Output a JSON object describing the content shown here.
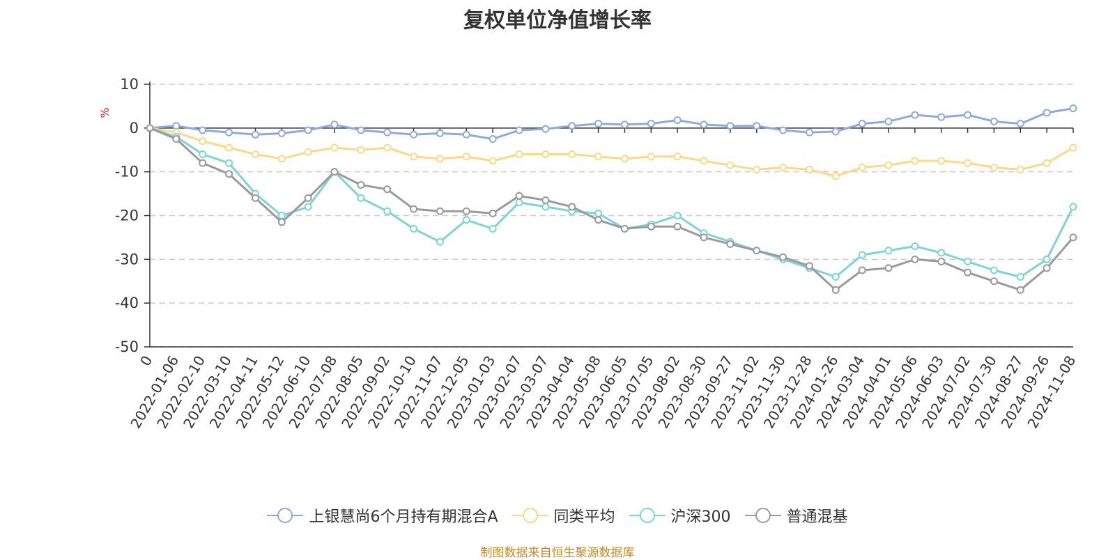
{
  "chart_data": {
    "type": "line",
    "title": "复权单位净值增长率",
    "ylabel": "%",
    "ylim": [
      -50,
      10
    ],
    "yticks": [
      10,
      0,
      -10,
      -20,
      -30,
      -40,
      -50
    ],
    "origin_tick": "0",
    "x": [
      "2022-01-06",
      "2022-02-10",
      "2022-03-10",
      "2022-04-11",
      "2022-05-12",
      "2022-06-10",
      "2022-07-08",
      "2022-08-05",
      "2022-09-02",
      "2022-10-10",
      "2022-11-07",
      "2022-12-05",
      "2023-01-03",
      "2023-02-07",
      "2023-03-07",
      "2023-04-04",
      "2023-05-08",
      "2023-06-05",
      "2023-07-05",
      "2023-08-02",
      "2023-08-30",
      "2023-09-27",
      "2023-11-02",
      "2023-11-30",
      "2023-12-28",
      "2024-01-26",
      "2024-03-04",
      "2024-04-01",
      "2024-05-06",
      "2024-06-03",
      "2024-07-02",
      "2024-07-30",
      "2024-08-27",
      "2024-09-26",
      "2024-11-08"
    ],
    "grid": true,
    "legend_position": "bottom",
    "series": [
      {
        "name": "上银慧尚6个月持有期混合A",
        "color": "#8eaadb",
        "values": [
          0.5,
          -0.5,
          -1.0,
          -1.5,
          -1.2,
          -0.5,
          0.8,
          -0.5,
          -1.0,
          -1.5,
          -1.2,
          -1.5,
          -2.5,
          -0.5,
          -0.2,
          0.5,
          1.0,
          0.8,
          1.0,
          1.8,
          0.8,
          0.5,
          0.5,
          -0.5,
          -1.0,
          -0.8,
          1.0,
          1.5,
          3.0,
          2.5,
          3.0,
          1.5,
          1.0,
          3.5,
          4.5
        ]
      },
      {
        "name": "同类平均",
        "color": "#fcd98a",
        "values": [
          -1.0,
          -3.0,
          -4.5,
          -6.0,
          -7.0,
          -5.5,
          -4.5,
          -5.0,
          -4.5,
          -6.5,
          -7.0,
          -6.5,
          -7.5,
          -6.0,
          -6.0,
          -6.0,
          -6.5,
          -7.0,
          -6.5,
          -6.5,
          -7.5,
          -8.5,
          -9.5,
          -9.0,
          -9.5,
          -11.0,
          -9.0,
          -8.5,
          -7.5,
          -7.5,
          -8.0,
          -9.0,
          -9.5,
          -8.0,
          -4.5
        ]
      },
      {
        "name": "沪深300",
        "color": "#7fd3d8",
        "values": [
          -2.0,
          -6.0,
          -8.0,
          -15.0,
          -20.0,
          -18.0,
          -10.0,
          -16.0,
          -19.0,
          -23.0,
          -26.0,
          -21.0,
          -23.0,
          -17.0,
          -18.0,
          -19.0,
          -19.5,
          -23.0,
          -22.0,
          -20.0,
          -24.0,
          -26.0,
          -28.0,
          -30.0,
          -32.0,
          -34.0,
          -29.0,
          -28.0,
          -27.0,
          -28.5,
          -30.5,
          -32.5,
          -34.0,
          -30.0,
          -18.0
        ]
      },
      {
        "name": "普通混基",
        "color": "#9a9a9a",
        "values": [
          -2.5,
          -8.0,
          -10.5,
          -16.0,
          -21.5,
          -16.0,
          -10.0,
          -13.0,
          -14.0,
          -18.5,
          -19.0,
          -19.0,
          -19.5,
          -15.5,
          -16.5,
          -18.0,
          -21.0,
          -23.0,
          -22.5,
          -22.5,
          -25.0,
          -26.5,
          -28.0,
          -29.5,
          -31.5,
          -37.0,
          -32.5,
          -32.0,
          -30.0,
          -30.5,
          -33.0,
          -35.0,
          -37.0,
          -32.0,
          -25.0
        ]
      }
    ]
  },
  "legend": [
    {
      "label": "上银慧尚6个月持有期混合A"
    },
    {
      "label": "同类平均"
    },
    {
      "label": "沪深300"
    },
    {
      "label": "普通混基"
    }
  ],
  "source_note": "制图数据来自恒生聚源数据库"
}
